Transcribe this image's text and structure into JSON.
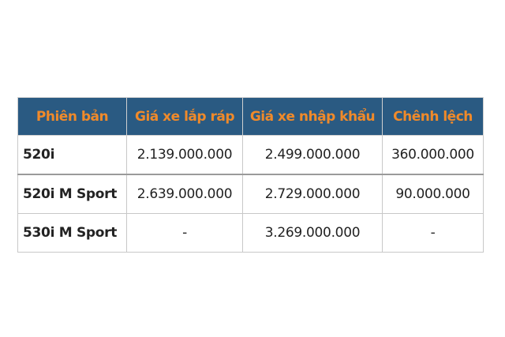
{
  "table": {
    "headers": [
      "Phiên bản",
      "Giá xe lắp ráp",
      "Giá xe nhập khẩu",
      "Chênh lệch"
    ],
    "rows": [
      [
        "520i",
        "2.139.000.000",
        "2.499.000.000",
        "360.000.000"
      ],
      [
        "520i M Sport",
        "2.639.000.000",
        "2.729.000.000",
        "90.000.000"
      ],
      [
        "530i M Sport",
        "-",
        "3.269.000.000",
        "-"
      ]
    ]
  },
  "colors": {
    "header_bg": "#2a5a82",
    "header_text": "#f08a2a"
  }
}
